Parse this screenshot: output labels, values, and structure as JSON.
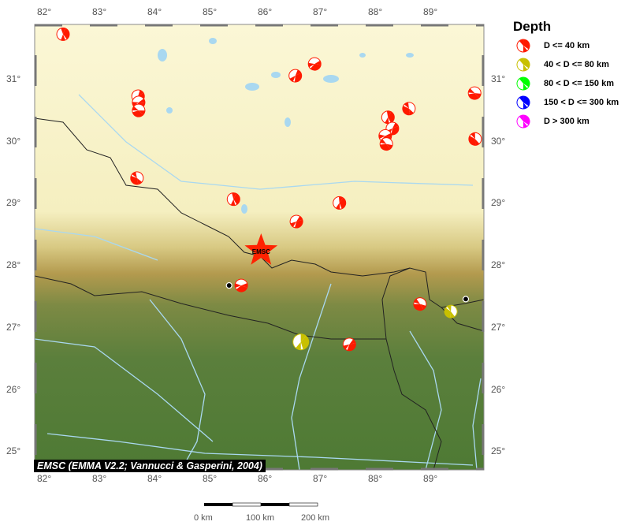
{
  "map": {
    "extent": {
      "lon": [
        81.8,
        89.9
      ],
      "lat": [
        24.7,
        31.85
      ]
    },
    "lon_ticks": [
      "82°",
      "83°",
      "84°",
      "85°",
      "86°",
      "87°",
      "88°",
      "89°"
    ],
    "lon_values": [
      82,
      83,
      84,
      85,
      86,
      87,
      88,
      89
    ],
    "lat_ticks": [
      "31°",
      "30°",
      "29°",
      "28°",
      "27°",
      "26°",
      "25°"
    ],
    "lat_values": [
      31,
      30,
      29,
      28,
      27,
      26,
      25
    ],
    "epicenter": {
      "label": "EMSC",
      "lon": 85.89,
      "lat": 28.23,
      "color": "#ff2200"
    },
    "stations": [
      {
        "lon": 85.31,
        "lat": 27.67
      },
      {
        "lon": 89.6,
        "lat": 27.45
      }
    ],
    "events": [
      {
        "lon": 82.3,
        "lat": 31.72,
        "depth_class": 0
      },
      {
        "lon": 83.66,
        "lat": 30.72,
        "depth_class": 0
      },
      {
        "lon": 83.67,
        "lat": 30.62,
        "depth_class": 0
      },
      {
        "lon": 83.67,
        "lat": 30.49,
        "depth_class": 0
      },
      {
        "lon": 83.64,
        "lat": 29.4,
        "depth_class": 0
      },
      {
        "lon": 85.39,
        "lat": 29.06,
        "depth_class": 0
      },
      {
        "lon": 86.51,
        "lat": 31.05,
        "depth_class": 0
      },
      {
        "lon": 86.86,
        "lat": 31.24,
        "depth_class": 0
      },
      {
        "lon": 89.76,
        "lat": 30.77,
        "depth_class": 0
      },
      {
        "lon": 88.57,
        "lat": 30.52,
        "depth_class": 0
      },
      {
        "lon": 88.19,
        "lat": 30.38,
        "depth_class": 0
      },
      {
        "lon": 88.27,
        "lat": 30.2,
        "depth_class": 0
      },
      {
        "lon": 88.14,
        "lat": 30.08,
        "depth_class": 0
      },
      {
        "lon": 88.16,
        "lat": 29.95,
        "depth_class": 0
      },
      {
        "lon": 89.77,
        "lat": 30.03,
        "depth_class": 0
      },
      {
        "lon": 87.31,
        "lat": 29.0,
        "depth_class": 0
      },
      {
        "lon": 86.53,
        "lat": 28.7,
        "depth_class": 0
      },
      {
        "lon": 85.53,
        "lat": 27.67,
        "depth_class": 0
      },
      {
        "lon": 88.77,
        "lat": 27.37,
        "depth_class": 0
      },
      {
        "lon": 89.33,
        "lat": 27.25,
        "depth_class": 1
      },
      {
        "lon": 86.61,
        "lat": 26.76,
        "depth_class": 1
      },
      {
        "lon": 87.49,
        "lat": 26.72,
        "depth_class": 0
      }
    ],
    "credit": "EMSC (EMMA V2.2; Vannucci & Gasperini, 2004)"
  },
  "legend": {
    "title": "Depth",
    "items": [
      {
        "label": "D <= 40 km",
        "color": "#ff1a00"
      },
      {
        "label": "40 < D <= 80 km",
        "color": "#c8c000"
      },
      {
        "label": "80 < D <= 150 km",
        "color": "#00ff00"
      },
      {
        "label": "150 < D <= 300 km",
        "color": "#0000ff"
      },
      {
        "label": "D > 300 km",
        "color": "#ff00ff"
      }
    ]
  },
  "scale_bar": {
    "labels": [
      "0 km",
      "100 km",
      "200 km"
    ]
  }
}
